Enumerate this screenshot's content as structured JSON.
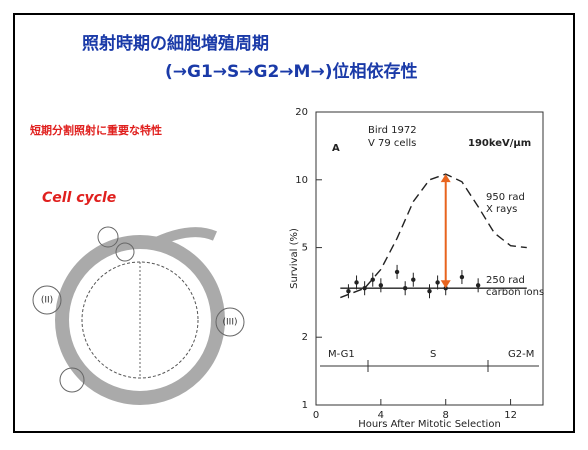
{
  "slide": {
    "title": "照射時期の細胞増殖周期",
    "subtitle": "(→G1→S→G2→M→)位相依存性",
    "note": "短期分割照射に重要な特性",
    "diagram_label": "Cell cycle",
    "diagram_phases": [
      "(II)",
      "(III)"
    ]
  },
  "chart_data": {
    "type": "line",
    "xlabel": "Hours After Mitotic Selection",
    "ylabel": "Survival (%)",
    "panel_label": "A",
    "annotations": [
      "Bird 1972",
      "V 79 cells",
      "190keV/μm",
      "950 rad",
      "X rays",
      "250 rad",
      "carbon ions",
      "M-G1",
      "S",
      "G2-M"
    ],
    "log_y": true,
    "xlim": [
      0,
      14
    ],
    "ylim": [
      1,
      20
    ],
    "xticks": [
      0,
      4,
      8,
      12
    ],
    "yticks": [
      1,
      2,
      5,
      10,
      20
    ],
    "arrow_color": "#e8641e",
    "series": [
      {
        "style": "dashed",
        "color": "#222222",
        "x": [
          1.5,
          3,
          4,
          5,
          6,
          7,
          8,
          9,
          10,
          11,
          12,
          13
        ],
        "values": [
          3.0,
          3.3,
          4.0,
          5.5,
          8.0,
          10,
          10.6,
          9.8,
          7.6,
          5.8,
          5.1,
          5.0
        ]
      },
      {
        "style": "points",
        "color": "#222222",
        "x": [
          2,
          2.5,
          3,
          3.5,
          4,
          5,
          5.5,
          6,
          7,
          7.5,
          8,
          9,
          10
        ],
        "values": [
          3.2,
          3.5,
          3.3,
          3.6,
          3.4,
          3.9,
          3.3,
          3.6,
          3.2,
          3.5,
          3.3,
          3.7,
          3.4
        ]
      },
      {
        "style": "line",
        "color": "#222222",
        "x": [
          1.5,
          13
        ],
        "values": [
          3.3,
          3.3
        ]
      }
    ]
  }
}
